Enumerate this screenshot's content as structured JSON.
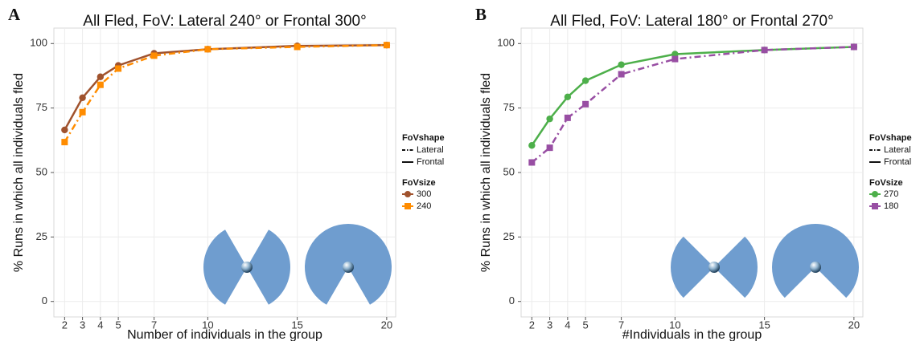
{
  "chart_data": [
    {
      "type": "line",
      "panel": "A",
      "title": "All Fled, FoV: Lateral 240° or Frontal 300°",
      "x_label": "Number of individuals in the group",
      "y_label": "% Runs in which all individuals fled",
      "x": [
        2,
        3,
        4,
        5,
        7,
        10,
        15,
        20
      ],
      "series": [
        {
          "name": "300",
          "color": "#a0522d",
          "dash": "solid",
          "marker": "circle",
          "values": [
            66.5,
            79,
            87.1,
            91.5,
            96.2,
            97.8,
            99.1,
            99.4
          ]
        },
        {
          "name": "240",
          "color": "#ff8c00",
          "dash": "dashdot",
          "marker": "square",
          "values": [
            61.8,
            73.4,
            84,
            90.3,
            95.3,
            97.8,
            98.7,
            99.4
          ]
        }
      ],
      "shape_legend": {
        "title": "FoVshape",
        "entries": [
          {
            "label": "Lateral",
            "dash": "dashdot"
          },
          {
            "label": "Frontal",
            "dash": "solid"
          }
        ]
      },
      "size_legend_title": "FoVsize",
      "xlim": [
        1.4,
        20.5
      ],
      "xticks": [
        2,
        3,
        4,
        5,
        7,
        10,
        15,
        20
      ],
      "ylim": [
        -6,
        106
      ],
      "yticks": [
        0,
        25,
        50,
        75,
        100
      ],
      "grid": true
    },
    {
      "type": "line",
      "panel": "B",
      "title": "All Fled, FoV: Lateral  180° or Frontal 270°",
      "x_label": "#Individuals in the group",
      "y_label": "% Runs in which all individuals fled",
      "x": [
        2,
        3,
        4,
        5,
        7,
        10,
        15,
        20
      ],
      "series": [
        {
          "name": "270",
          "color": "#4daf4a",
          "dash": "solid",
          "marker": "circle",
          "values": [
            60.5,
            70.8,
            79.3,
            85.6,
            91.8,
            95.9,
            97.5,
            98.7
          ]
        },
        {
          "name": "180",
          "color": "#984ea3",
          "dash": "dashdot",
          "marker": "square",
          "values": [
            53.9,
            59.6,
            71.2,
            76.5,
            88.1,
            94,
            97.5,
            98.7
          ]
        }
      ],
      "shape_legend": {
        "title": "FoVshape",
        "entries": [
          {
            "label": "Lateral",
            "dash": "dashdot"
          },
          {
            "label": "Frontal",
            "dash": "solid"
          }
        ]
      },
      "size_legend_title": "FoVsize",
      "xlim": [
        1.4,
        20.5
      ],
      "xticks": [
        2,
        3,
        4,
        5,
        7,
        10,
        15,
        20
      ],
      "ylim": [
        -6,
        106
      ],
      "yticks": [
        0,
        25,
        50,
        75,
        100
      ],
      "grid": true
    }
  ]
}
